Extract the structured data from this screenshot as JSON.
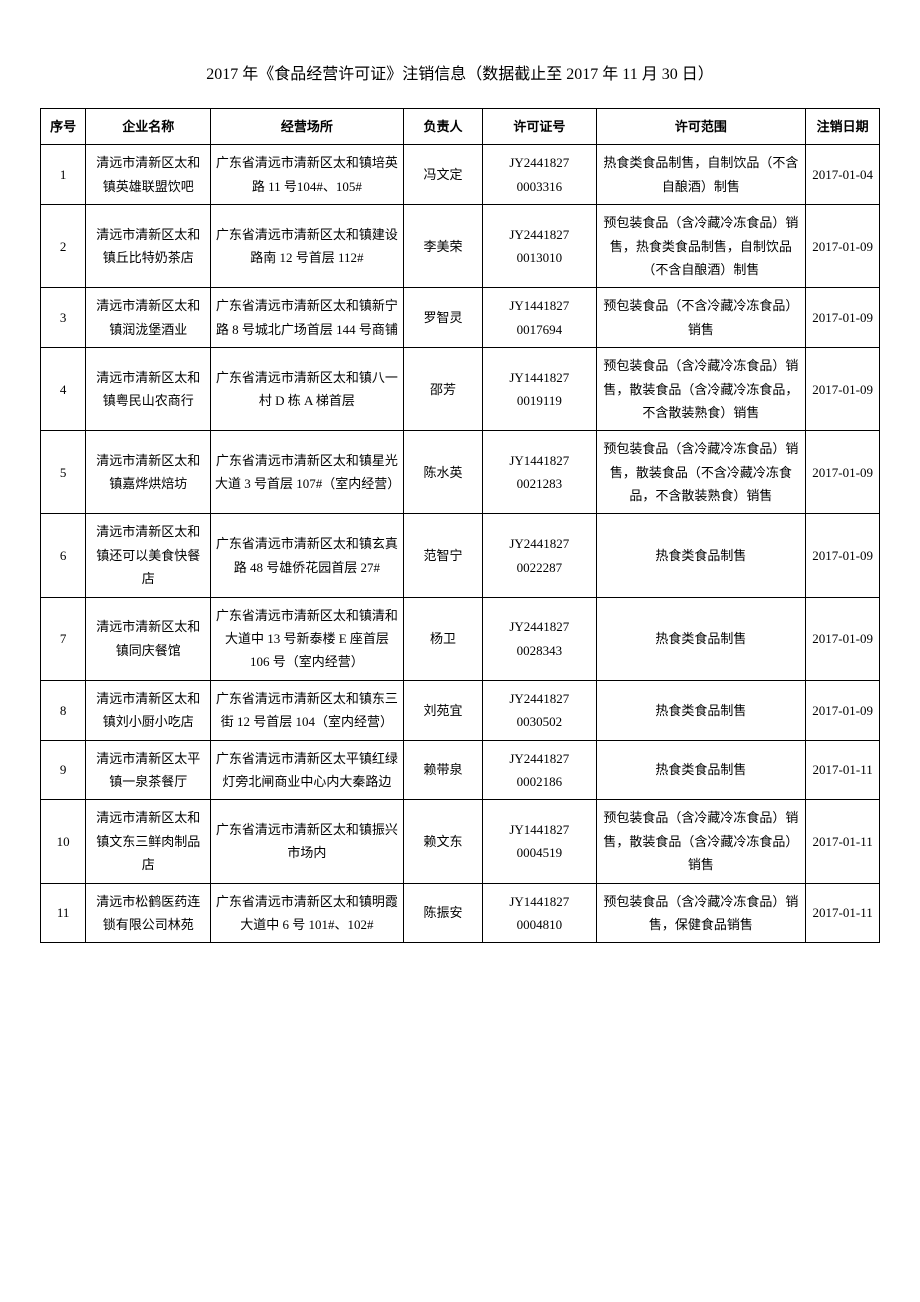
{
  "title": "2017 年《食品经营许可证》注销信息（数据截止至 2017 年 11 月 30 日）",
  "columns": {
    "seq": "序号",
    "name": "企业名称",
    "place": "经营场所",
    "person": "负责人",
    "license": "许可证号",
    "scope": "许可范围",
    "date": "注销日期"
  },
  "rows": [
    {
      "seq": "1",
      "name": "清远市清新区太和镇英雄联盟饮吧",
      "place": "广东省清远市清新区太和镇培英路 11 号104#、105#",
      "person": "冯文定",
      "license": "JY2441827 0003316",
      "scope": "热食类食品制售，自制饮品（不含自酿酒）制售",
      "date": "2017-01-04"
    },
    {
      "seq": "2",
      "name": "清远市清新区太和镇丘比特奶茶店",
      "place": "广东省清远市清新区太和镇建设路南 12 号首层 112#",
      "person": "李美荣",
      "license": "JY2441827 0013010",
      "scope": "预包装食品（含冷藏冷冻食品）销售，热食类食品制售，自制饮品（不含自酿酒）制售",
      "date": "2017-01-09"
    },
    {
      "seq": "3",
      "name": "清远市清新区太和镇润泷堡酒业",
      "place": "广东省清远市清新区太和镇新宁路 8 号城北广场首层 144 号商铺",
      "person": "罗智灵",
      "license": "JY1441827 0017694",
      "scope": "预包装食品（不含冷藏冷冻食品）销售",
      "date": "2017-01-09"
    },
    {
      "seq": "4",
      "name": "清远市清新区太和镇粤民山农商行",
      "place": "广东省清远市清新区太和镇八一村 D 栋 A 梯首层",
      "person": "邵芳",
      "license": "JY1441827 0019119",
      "scope": "预包装食品（含冷藏冷冻食品）销售，散装食品（含冷藏冷冻食品，不含散装熟食）销售",
      "date": "2017-01-09"
    },
    {
      "seq": "5",
      "name": "清远市清新区太和镇嘉烨烘焙坊",
      "place": "广东省清远市清新区太和镇星光大道 3 号首层 107#（室内经营）",
      "person": "陈水英",
      "license": "JY1441827 0021283",
      "scope": "预包装食品（含冷藏冷冻食品）销售，散装食品（不含冷藏冷冻食品，不含散装熟食）销售",
      "date": "2017-01-09"
    },
    {
      "seq": "6",
      "name": "清远市清新区太和镇还可以美食快餐店",
      "place": "广东省清远市清新区太和镇玄真路 48 号雄侨花园首层 27#",
      "person": "范智宁",
      "license": "JY2441827 0022287",
      "scope": "热食类食品制售",
      "date": "2017-01-09"
    },
    {
      "seq": "7",
      "name": "清远市清新区太和镇同庆餐馆",
      "place": "广东省清远市清新区太和镇清和大道中 13 号新泰楼 E 座首层 106 号（室内经营）",
      "person": "杨卫",
      "license": "JY2441827 0028343",
      "scope": "热食类食品制售",
      "date": "2017-01-09"
    },
    {
      "seq": "8",
      "name": "清远市清新区太和镇刘小厨小吃店",
      "place": "广东省清远市清新区太和镇东三街 12 号首层 104（室内经营）",
      "person": "刘苑宜",
      "license": "JY2441827 0030502",
      "scope": "热食类食品制售",
      "date": "2017-01-09"
    },
    {
      "seq": "9",
      "name": "清远市清新区太平镇一泉茶餐厅",
      "place": "广东省清远市清新区太平镇红绿灯旁北闸商业中心内大秦路边",
      "person": "赖带泉",
      "license": "JY2441827 0002186",
      "scope": "热食类食品制售",
      "date": "2017-01-11"
    },
    {
      "seq": "10",
      "name": "清远市清新区太和镇文东三鲜肉制品店",
      "place": "广东省清远市清新区太和镇振兴市场内",
      "person": "赖文东",
      "license": "JY1441827 0004519",
      "scope": "预包装食品（含冷藏冷冻食品）销售，散装食品（含冷藏冷冻食品）销售",
      "date": "2017-01-11"
    },
    {
      "seq": "11",
      "name": "清远市松鹤医药连锁有限公司林苑",
      "place": "广东省清远市清新区太和镇明霞大道中 6 号 101#、102#",
      "person": "陈振安",
      "license": "JY1441827 0004810",
      "scope": "预包装食品（含冷藏冷冻食品）销售，保健食品销售",
      "date": "2017-01-11"
    }
  ]
}
